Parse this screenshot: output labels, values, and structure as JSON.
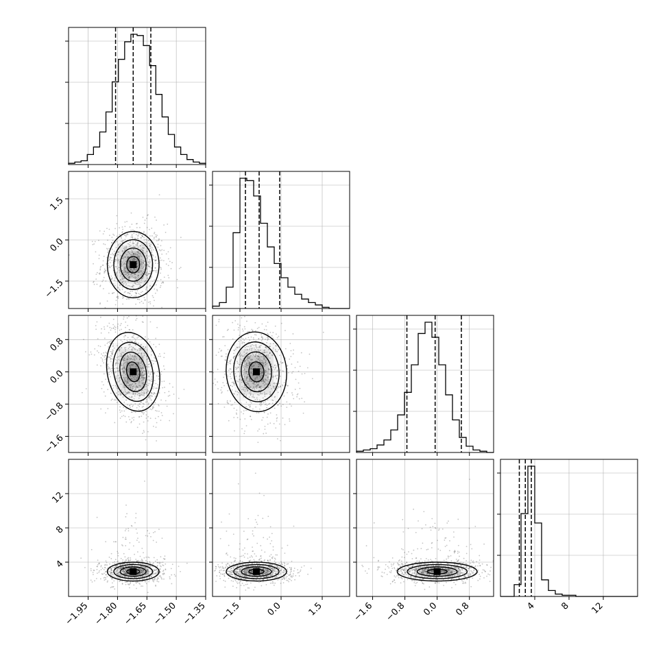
{
  "chart_data": {
    "type": "corner",
    "parameters": [
      {
        "id": "p0",
        "range": [
          -2.05,
          -1.35
        ],
        "ticks": [
          -1.95,
          -1.8,
          -1.65,
          -1.5,
          -1.35
        ],
        "tick_labels": [
          "−1.95",
          "−1.80",
          "−1.65",
          "−1.50",
          "−1.35"
        ],
        "quantiles": [
          -1.81,
          -1.72,
          -1.63
        ],
        "hist_bins": [
          -2.05,
          -1.35
        ],
        "hist_counts": [
          1,
          2,
          3,
          8,
          14,
          26,
          42,
          66,
          84,
          98,
          104,
          103,
          95,
          79,
          56,
          38,
          24,
          14,
          8,
          4,
          2,
          1
        ],
        "mode": -1.72,
        "sigma": 0.06
      },
      {
        "id": "p1",
        "range": [
          -2.5,
          2.5
        ],
        "ticks": [
          -1.5,
          0.0,
          1.5
        ],
        "tick_labels": [
          "−1.5",
          "0.0",
          "1.5"
        ],
        "quantiles": [
          -1.3,
          -0.8,
          -0.05
        ],
        "hist_bins": [
          -2.5,
          2.5
        ],
        "hist_counts": [
          2,
          5,
          18,
          64,
          110,
          108,
          95,
          72,
          52,
          38,
          26,
          18,
          12,
          8,
          5,
          3,
          1,
          0,
          0,
          0
        ],
        "mode": -0.9,
        "sigma": 0.5
      },
      {
        "id": "p2",
        "range": [
          -2.0,
          1.4
        ],
        "ticks": [
          -1.6,
          -0.8,
          0.0,
          0.8
        ],
        "tick_labels": [
          "−1.6",
          "−0.8",
          "0.0",
          "0.8"
        ],
        "quantiles": [
          -0.75,
          -0.05,
          0.6
        ],
        "hist_bins": [
          -2.0,
          1.4
        ],
        "hist_counts": [
          1,
          2,
          3,
          6,
          10,
          18,
          30,
          48,
          70,
          95,
          104,
          92,
          70,
          46,
          26,
          12,
          5,
          2,
          1,
          0
        ],
        "mode": 0.0,
        "sigma": 0.45
      },
      {
        "id": "p3",
        "range": [
          0.0,
          16.0
        ],
        "ticks": [
          4,
          8,
          12
        ],
        "tick_labels": [
          "4",
          "8",
          "12"
        ],
        "y_tick_labels": [
          "4",
          "8",
          "12"
        ],
        "quantiles": [
          2.2,
          2.9,
          3.6
        ],
        "hist_bins": [
          0.0,
          16.0
        ],
        "hist_counts": [
          0,
          0,
          10,
          70,
          110,
          62,
          14,
          5,
          2,
          1,
          1,
          0,
          0,
          0,
          0,
          0,
          0,
          0,
          0,
          0
        ],
        "mode": 2.9,
        "sigma": 0.5
      }
    ],
    "pairs": [
      {
        "row": 1,
        "col": 0,
        "center": [
          -1.72,
          -0.9
        ],
        "spread": [
          0.06,
          0.55
        ],
        "rho": 0.0,
        "contour_levels": [
          0.5,
          1.0,
          1.5,
          2.0
        ]
      },
      {
        "row": 2,
        "col": 0,
        "center": [
          -1.72,
          0.0
        ],
        "spread": [
          0.06,
          0.45
        ],
        "rho": -0.35,
        "contour_levels": [
          0.5,
          1.0,
          1.5,
          2.0
        ]
      },
      {
        "row": 2,
        "col": 1,
        "center": [
          -0.9,
          0.0
        ],
        "spread": [
          0.5,
          0.45
        ],
        "rho": -0.15,
        "contour_levels": [
          0.5,
          1.0,
          1.5,
          2.0
        ]
      },
      {
        "row": 3,
        "col": 0,
        "center": [
          -1.72,
          2.9
        ],
        "spread": [
          0.06,
          0.5
        ],
        "rho": 0.0,
        "contour_levels": [
          0.5,
          1.0,
          1.5,
          2.0
        ]
      },
      {
        "row": 3,
        "col": 1,
        "center": [
          -0.9,
          2.9
        ],
        "spread": [
          0.5,
          0.5
        ],
        "rho": 0.0,
        "contour_levels": [
          0.5,
          1.0,
          1.5,
          2.0
        ]
      },
      {
        "row": 3,
        "col": 2,
        "center": [
          0.0,
          2.9
        ],
        "spread": [
          0.45,
          0.5
        ],
        "rho": 0.0,
        "contour_levels": [
          0.5,
          1.0,
          1.5,
          2.0
        ]
      }
    ],
    "grid": true,
    "colors": {
      "line": "#000000",
      "grid": "#b0b0b0",
      "points": "#555555",
      "density": "#000000"
    }
  }
}
